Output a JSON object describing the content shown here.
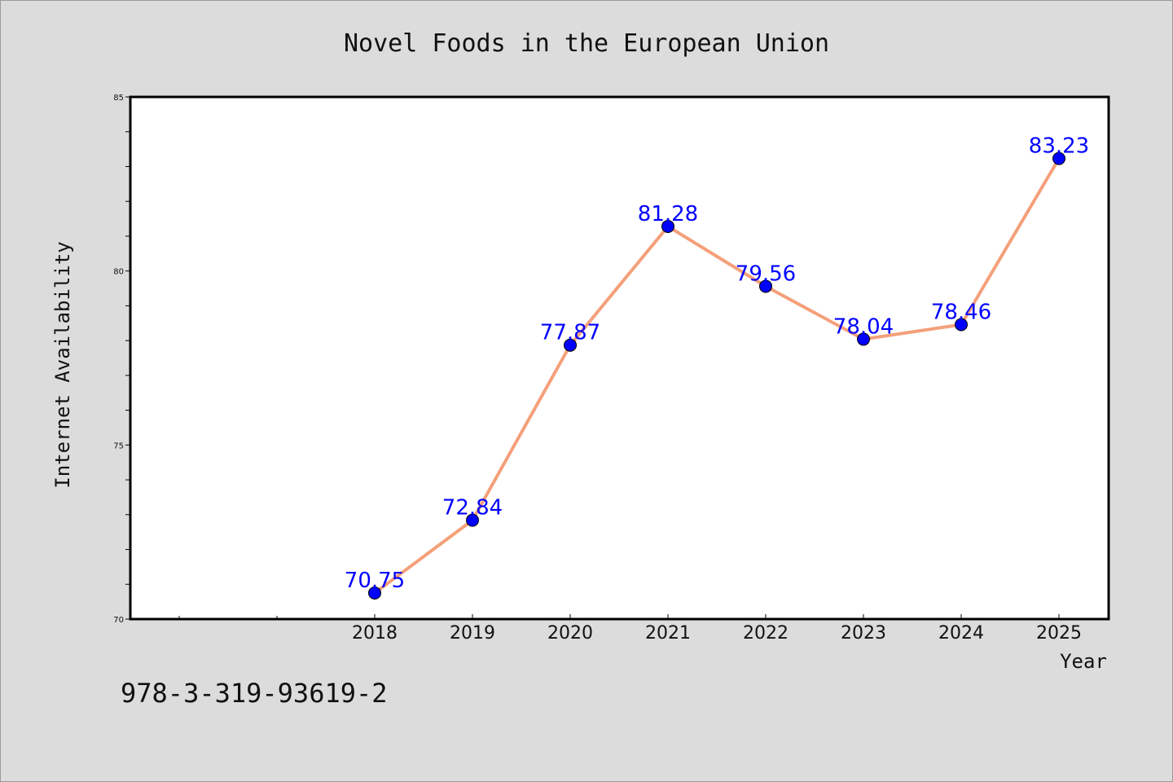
{
  "chart_data": {
    "type": "line",
    "title": "Novel Foods in the European Union",
    "xlabel": "Year",
    "ylabel": "Internet Availability",
    "x": [
      "2018",
      "2019",
      "2020",
      "2021",
      "2022",
      "2023",
      "2024",
      "2025"
    ],
    "series": [
      {
        "values": [
          70.75,
          72.84,
          77.87,
          81.28,
          79.56,
          78.04,
          78.46,
          83.23
        ],
        "line_color": "#f4a07a",
        "marker_color": "#0000ff"
      }
    ],
    "data_labels": [
      "70.75",
      "72.84",
      "77.87",
      "81.28",
      "79.56",
      "78.04",
      "78.46",
      "83.23"
    ],
    "ylim": [
      70,
      85
    ],
    "yticks": [
      70,
      75,
      80,
      85
    ],
    "grid": false,
    "legend": "none"
  },
  "footer_text": "978-3-319-93619-2"
}
